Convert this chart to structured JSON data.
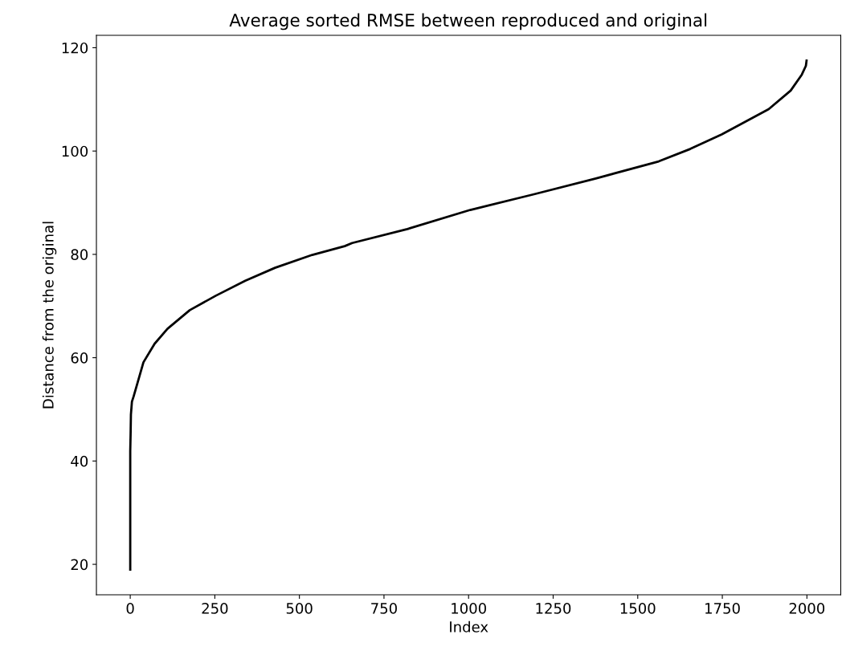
{
  "chart_data": {
    "type": "line",
    "title": "Average sorted RMSE between reproduced and original",
    "xlabel": "Index",
    "ylabel": "Distance from the original",
    "series": [
      {
        "color": "#000000",
        "x": [
          0,
          0,
          0,
          1,
          2,
          5,
          10,
          17,
          39,
          72,
          110,
          176,
          253,
          340,
          428,
          538,
          634,
          656,
          819,
          1005,
          1191,
          1376,
          1562,
          1655,
          1748,
          1887,
          1952,
          1985,
          1997,
          1999
        ],
        "values": [
          19,
          30,
          41.9,
          45,
          49,
          51.5,
          52.5,
          54.1,
          59.1,
          62.7,
          65.6,
          69.2,
          72.0,
          74.9,
          77.4,
          79.9,
          81.6,
          82.2,
          84.9,
          88.6,
          91.6,
          94.7,
          98.0,
          100.4,
          103.2,
          108.1,
          111.7,
          114.8,
          116.5,
          117.5
        ]
      }
    ],
    "xlim": [
      -100,
      2100
    ],
    "xticks": [
      0,
      250,
      500,
      750,
      1000,
      1250,
      1500,
      1750,
      2000
    ],
    "ylim": [
      14.1,
      122.4
    ],
    "yticks": [
      20,
      40,
      60,
      80,
      100,
      120
    ],
    "grid": false
  }
}
